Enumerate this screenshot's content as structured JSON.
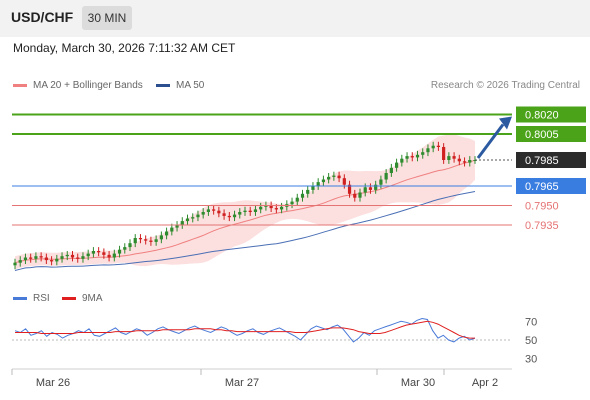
{
  "header": {
    "symbol": "USD/CHF",
    "timeframe": "30 MIN"
  },
  "datetime": "Monday, March 30, 2026 7:11:32 AM CET",
  "legend": {
    "ma20": "MA 20 + Bollinger Bands",
    "ma50": "MA 50",
    "credit": "Research © 2026 Trading Central"
  },
  "rsi_legend": {
    "rsi": "RSI",
    "ma": "9MA"
  },
  "colors": {
    "resistance": "#4aa319",
    "current": "#2b2b2b",
    "pivot": "#3a7de0",
    "support": "#e57373",
    "arrow": "#2c5aa0",
    "ma20": "#f08080",
    "ma50": "#4a6fb5",
    "candle_up": "#2e8b2e",
    "candle_down": "#d02020"
  },
  "chart_data": [
    {
      "type": "line",
      "title": "",
      "xlabel": "",
      "ylabel": "",
      "ylim": [
        0.7885,
        0.8035
      ],
      "x_ticks": [
        "Mar 26",
        "Mar 27",
        "Mar 30",
        "Apr 2"
      ],
      "levels": [
        {
          "value": 0.802,
          "label": "0.8020",
          "kind": "resistance"
        },
        {
          "value": 0.8005,
          "label": "0.8005",
          "kind": "resistance"
        },
        {
          "value": 0.7985,
          "label": "0.7985",
          "kind": "current"
        },
        {
          "value": 0.7965,
          "label": "0.7965",
          "kind": "pivot"
        },
        {
          "value": 0.795,
          "label": "0.7950",
          "kind": "support"
        },
        {
          "value": 0.7935,
          "label": "0.7935",
          "kind": "support"
        }
      ],
      "series": [
        {
          "name": "",
          "values": [
            0.7906,
            0.7908,
            0.791,
            0.7909,
            0.7911,
            0.791,
            0.7908,
            0.7907,
            0.7909,
            0.7911,
            0.7912,
            0.791,
            0.7909,
            0.7911,
            0.7913,
            0.7915,
            0.7914,
            0.7912,
            0.791,
            0.7913,
            0.7916,
            0.7918,
            0.7921,
            0.7925,
            0.7924,
            0.7923,
            0.7922,
            0.7924,
            0.7927,
            0.793,
            0.7933,
            0.7935,
            0.7938,
            0.794,
            0.7941,
            0.7943,
            0.7945,
            0.7947,
            0.7946,
            0.7944,
            0.7942,
            0.7941,
            0.7943,
            0.7945,
            0.7946,
            0.7945,
            0.7947,
            0.7949,
            0.795,
            0.7948,
            0.7947,
            0.7949,
            0.7951,
            0.7953,
            0.7956,
            0.7959,
            0.7962,
            0.7965,
            0.7968,
            0.797,
            0.7972,
            0.7973,
            0.7971,
            0.7966,
            0.7959,
            0.7956,
            0.796,
            0.7964,
            0.7962,
            0.7966,
            0.797,
            0.7975,
            0.7979,
            0.7983,
            0.7986,
            0.7988,
            0.7987,
            0.7989,
            0.7991,
            0.7994,
            0.7996,
            0.7995,
            0.7985,
            0.7988,
            0.7986,
            0.7984,
            0.7983,
            0.7985,
            0.7985
          ]
        },
        {
          "name": "MA 20",
          "values": []
        },
        {
          "name": "MA 50",
          "values": []
        }
      ]
    },
    {
      "type": "line",
      "title": "",
      "ylim": [
        20,
        80
      ],
      "y_ticks": [
        70,
        50,
        30
      ],
      "series": [
        {
          "name": "RSI",
          "values": [
            60,
            58,
            62,
            55,
            57,
            60,
            54,
            58,
            56,
            52,
            55,
            57,
            60,
            58,
            62,
            55,
            54,
            57,
            60,
            63,
            58,
            56,
            59,
            62,
            60,
            55,
            58,
            62,
            64,
            61,
            59,
            57,
            60,
            63,
            65,
            62,
            60,
            58,
            61,
            64,
            62,
            58,
            55,
            57,
            60,
            62,
            58,
            56,
            59,
            61,
            63,
            60,
            57,
            54,
            50,
            56,
            62,
            65,
            63,
            61,
            64,
            66,
            62,
            55,
            48,
            52,
            58,
            55,
            60,
            62,
            64,
            66,
            68,
            70,
            69,
            67,
            71,
            73,
            72,
            60,
            52,
            55,
            50,
            48,
            52,
            54,
            50,
            52
          ]
        },
        {
          "name": "9MA",
          "values": [
            58,
            58,
            58,
            58,
            58,
            57,
            57,
            57,
            57,
            57,
            57,
            57,
            58,
            58,
            58,
            58,
            58,
            58,
            58,
            59,
            59,
            59,
            59,
            60,
            60,
            60,
            60,
            60,
            61,
            61,
            61,
            61,
            61,
            61,
            62,
            62,
            62,
            62,
            61,
            61,
            60,
            60,
            59,
            59,
            59,
            59,
            59,
            59,
            59,
            59,
            59,
            59,
            59,
            58,
            58,
            58,
            59,
            60,
            61,
            62,
            63,
            63,
            63,
            62,
            61,
            59,
            58,
            57,
            57,
            57,
            58,
            60,
            62,
            64,
            66,
            67,
            68,
            69,
            70,
            69,
            67,
            64,
            61,
            58,
            55,
            53,
            52,
            52
          ]
        }
      ]
    }
  ]
}
